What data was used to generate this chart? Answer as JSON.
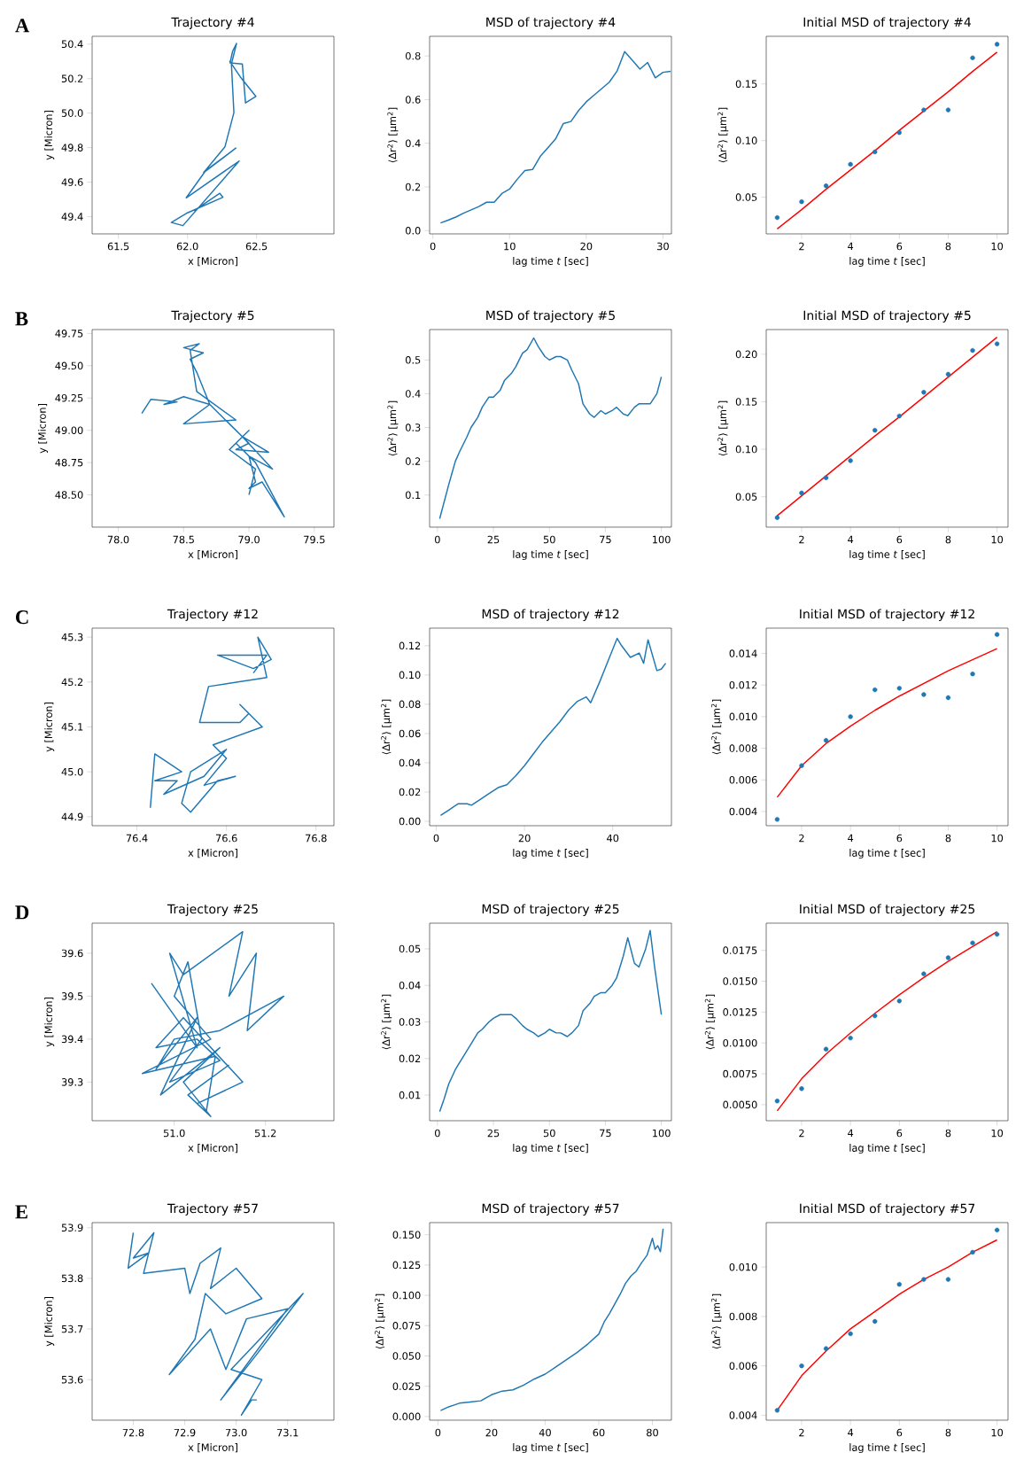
{
  "chart_data": [
    {
      "type": "line",
      "title": "Trajectory #4",
      "xlabel": "x [Micron]",
      "ylabel": "y [Micron]",
      "annotations": [
        "A"
      ],
      "xlim": [
        61.31,
        63.06
      ],
      "ylim": [
        49.3,
        50.445
      ],
      "xticks": [
        61.5,
        {
          "value": 62.0,
          "label": "62.0"
        },
        62.5
      ],
      "yticks": [
        49.4,
        49.6,
        49.8,
        {
          "value": 50.0,
          "label": "50.0"
        },
        50.2,
        50.4
      ],
      "series": [
        {
          "color": "#1f77b4",
          "x": [
            62.047,
            62.234,
            62.257,
            62.0,
            61.883,
            61.967,
            62.374,
            61.991,
            62.131,
            62.35,
            62.117,
            62.271,
            62.336,
            62.318,
            62.355,
            62.327,
            62.308,
            62.397,
            62.42,
            62.495,
            62.383,
            62.304
          ],
          "values": [
            49.434,
            49.535,
            49.512,
            49.422,
            49.366,
            49.348,
            49.722,
            49.509,
            49.666,
            49.797,
            49.655,
            49.804,
            50.003,
            50.284,
            50.404,
            50.359,
            50.291,
            50.284,
            50.059,
            50.097,
            50.209,
            50.303
          ]
        }
      ]
    },
    {
      "type": "line",
      "title": "MSD of trajectory #4",
      "xlabel": "lag time *t* [sec]",
      "ylabel": "⟨Δr$^{2}$⟩ [μm$^{2}$]",
      "xlim": [
        -0.42,
        31.1
      ],
      "ylim": [
        -0.015,
        0.89
      ],
      "xticks": [
        0,
        10,
        20,
        30
      ],
      "yticks": [
        {
          "value": 0,
          "label": "0.0"
        },
        0.2,
        0.4,
        0.6,
        0.8
      ],
      "series": [
        {
          "color": "#1f77b4",
          "x": [
            1,
            2,
            3,
            4,
            5,
            6,
            7,
            8,
            9,
            10,
            11,
            12,
            13,
            14,
            15,
            16,
            17,
            18,
            19,
            20,
            21,
            22,
            23,
            24,
            25,
            26,
            27,
            28,
            29,
            30,
            31
          ],
          "values": [
            0.035,
            0.048,
            0.062,
            0.08,
            0.095,
            0.11,
            0.13,
            0.13,
            0.17,
            0.19,
            0.235,
            0.275,
            0.28,
            0.34,
            0.38,
            0.42,
            0.49,
            0.5,
            0.55,
            0.59,
            0.62,
            0.65,
            0.68,
            0.73,
            0.82,
            0.78,
            0.74,
            0.77,
            0.7,
            0.725,
            0.73
          ]
        }
      ]
    },
    {
      "type": "scatter",
      "title": "Initial MSD of trajectory #4",
      "xlabel": "lag time *t* [sec]",
      "ylabel": "⟨Δr$^{2}$⟩ [μm$^{2}$]",
      "xlim": [
        0.55,
        10.45
      ],
      "ylim": [
        0.0176,
        0.192
      ],
      "xticks": [
        2,
        4,
        6,
        8,
        10
      ],
      "yticks": [
        0.05,
        {
          "value": 0.1,
          "label": "0.10"
        },
        0.15
      ],
      "x": [
        1,
        2,
        3,
        4,
        5,
        6,
        7,
        8,
        9,
        10
      ],
      "series": [
        {
          "type": "scatter",
          "color": "#1f77b4",
          "values": [
            0.032,
            0.046,
            0.06,
            0.079,
            0.09,
            0.107,
            0.127,
            0.127,
            0.173,
            0.185
          ]
        },
        {
          "type": "line",
          "color": "#ff0000",
          "values": [
            0.022,
            0.039,
            0.057,
            0.074,
            0.091,
            0.109,
            0.126,
            0.143,
            0.161,
            0.178
          ]
        }
      ]
    },
    {
      "type": "line",
      "title": "Trajectory #5",
      "xlabel": "x [Micron]",
      "ylabel": "y [Micron]",
      "annotations": [
        "B"
      ],
      "xlim": [
        77.8,
        79.65
      ],
      "ylim": [
        48.25,
        49.78
      ],
      "xticks": [
        {
          "value": 78.0,
          "label": "78.0"
        },
        78.5,
        {
          "value": 79.0,
          "label": "79.0"
        },
        79.5
      ],
      "yticks": [
        {
          "value": 48.5,
          "label": "48.50"
        },
        48.75,
        {
          "value": 49.0,
          "label": "49.00"
        },
        49.25,
        {
          "value": 49.5,
          "label": "49.50"
        },
        49.75
      ],
      "series": [
        {
          "color": "#1f77b4",
          "x": [
            78.18,
            78.25,
            78.45,
            78.35,
            78.5,
            78.7,
            78.5,
            78.9,
            78.6,
            78.55,
            78.62,
            78.5,
            78.65,
            78.55,
            78.6,
            78.7,
            78.85,
            79.0,
            78.9,
            79.15,
            78.95,
            79.18,
            79.0,
            79.05,
            79.0,
            79.1,
            79.27,
            79.05,
            78.9,
            79.0,
            78.85,
            79.05,
            79.0
          ],
          "values": [
            49.13,
            49.24,
            49.22,
            49.2,
            49.26,
            49.2,
            49.05,
            49.08,
            49.3,
            49.62,
            49.67,
            49.64,
            49.6,
            49.55,
            49.45,
            49.2,
            49.05,
            48.9,
            48.85,
            48.83,
            48.95,
            48.7,
            48.8,
            48.6,
            48.55,
            48.6,
            48.33,
            48.75,
            48.9,
            49.0,
            48.85,
            48.7,
            48.5
          ]
        }
      ]
    },
    {
      "type": "line",
      "title": "MSD of trajectory #5",
      "xlabel": "lag time *t* [sec]",
      "ylabel": "⟨Δr$^{2}$⟩ [μm$^{2}$]",
      "xlim": [
        -3.5,
        104.5
      ],
      "ylim": [
        0.005,
        0.59
      ],
      "xticks": [
        0,
        25,
        50,
        75,
        100
      ],
      "yticks": [
        0.1,
        0.2,
        0.3,
        0.4,
        0.5
      ],
      "series": [
        {
          "color": "#1f77b4",
          "x": [
            1,
            3,
            5,
            8,
            10,
            13,
            15,
            18,
            20,
            23,
            25,
            28,
            30,
            33,
            35,
            38,
            40,
            43,
            45,
            48,
            50,
            53,
            55,
            58,
            60,
            63,
            65,
            68,
            70,
            73,
            75,
            78,
            80,
            83,
            85,
            88,
            90,
            93,
            95,
            98,
            100
          ],
          "values": [
            0.03,
            0.08,
            0.13,
            0.2,
            0.23,
            0.27,
            0.3,
            0.33,
            0.36,
            0.39,
            0.39,
            0.41,
            0.44,
            0.46,
            0.48,
            0.52,
            0.53,
            0.565,
            0.54,
            0.51,
            0.5,
            0.51,
            0.51,
            0.5,
            0.47,
            0.43,
            0.37,
            0.34,
            0.33,
            0.35,
            0.34,
            0.35,
            0.36,
            0.34,
            0.335,
            0.36,
            0.37,
            0.37,
            0.37,
            0.4,
            0.45
          ]
        }
      ]
    },
    {
      "type": "scatter",
      "title": "Initial MSD of trajectory #5",
      "xlabel": "lag time *t* [sec]",
      "ylabel": "⟨Δr$^{2}$⟩ [μm$^{2}$]",
      "xlim": [
        0.55,
        10.45
      ],
      "ylim": [
        0.018,
        0.226
      ],
      "xticks": [
        2,
        4,
        6,
        8,
        10
      ],
      "yticks": [
        0.05,
        {
          "value": 0.1,
          "label": "0.10"
        },
        0.15,
        {
          "value": 0.2,
          "label": "0.20"
        }
      ],
      "x": [
        1,
        2,
        3,
        4,
        5,
        6,
        7,
        8,
        9,
        10
      ],
      "series": [
        {
          "type": "scatter",
          "color": "#1f77b4",
          "values": [
            0.028,
            0.054,
            0.07,
            0.088,
            0.12,
            0.135,
            0.16,
            0.179,
            0.204,
            0.211
          ]
        },
        {
          "type": "line",
          "color": "#ff0000",
          "values": [
            0.03,
            0.051,
            0.072,
            0.093,
            0.114,
            0.134,
            0.155,
            0.176,
            0.197,
            0.218
          ]
        }
      ]
    },
    {
      "type": "line",
      "title": "Trajectory #12",
      "xlabel": "x [Micron]",
      "ylabel": "y [Micron]",
      "annotations": [
        "C"
      ],
      "xlim": [
        76.3,
        76.84
      ],
      "ylim": [
        44.88,
        45.32
      ],
      "xticks": [
        76.4,
        76.6,
        76.8
      ],
      "yticks": [
        44.9,
        {
          "value": 45.0,
          "label": "45.0"
        },
        45.1,
        45.2,
        45.3
      ],
      "series": [
        {
          "color": "#1f77b4",
          "x": [
            76.43,
            76.44,
            76.5,
            76.44,
            76.49,
            76.46,
            76.55,
            76.6,
            76.52,
            76.5,
            76.52,
            76.58,
            76.62,
            76.55,
            76.6,
            76.57,
            76.68,
            76.63,
            76.65,
            76.63,
            76.54,
            76.56,
            76.69,
            76.67,
            76.7,
            76.66,
            76.58,
            76.69,
            76.66
          ],
          "values": [
            44.92,
            45.04,
            45.0,
            44.98,
            44.98,
            44.95,
            44.99,
            45.05,
            45.0,
            44.93,
            44.91,
            44.98,
            44.99,
            44.97,
            45.03,
            45.06,
            45.1,
            45.15,
            45.13,
            45.11,
            45.11,
            45.19,
            45.21,
            45.3,
            45.25,
            45.23,
            45.26,
            45.26,
            45.22
          ]
        }
      ]
    },
    {
      "type": "line",
      "title": "MSD of trajectory #12",
      "xlabel": "lag time *t* [sec]",
      "ylabel": "⟨Δr$^{2}$⟩ [μm$^{2}$]",
      "xlim": [
        -1.5,
        53.3
      ],
      "ylim": [
        -0.003,
        0.132
      ],
      "xticks": [
        0,
        20,
        40
      ],
      "yticks": [
        {
          "value": 0,
          "label": "0.00"
        },
        0.02,
        0.04,
        0.06,
        0.08,
        {
          "value": 0.1,
          "label": "0.10"
        },
        0.12
      ],
      "series": [
        {
          "color": "#1f77b4",
          "x": [
            1,
            3,
            5,
            7,
            8,
            10,
            12,
            14,
            16,
            18,
            20,
            22,
            24,
            26,
            28,
            30,
            32,
            34,
            35,
            37,
            39,
            41,
            42,
            44,
            46,
            47,
            48,
            50,
            51,
            52
          ],
          "values": [
            0.004,
            0.008,
            0.012,
            0.012,
            0.011,
            0.015,
            0.019,
            0.023,
            0.025,
            0.031,
            0.038,
            0.046,
            0.054,
            0.061,
            0.068,
            0.076,
            0.082,
            0.085,
            0.081,
            0.095,
            0.11,
            0.125,
            0.12,
            0.112,
            0.115,
            0.108,
            0.124,
            0.103,
            0.104,
            0.108
          ]
        }
      ]
    },
    {
      "type": "scatter",
      "title": "Initial MSD of trajectory #12",
      "xlabel": "lag time *t* [sec]",
      "ylabel": "⟨Δr$^{2}$⟩ [μm$^{2}$]",
      "xlim": [
        0.55,
        10.45
      ],
      "ylim": [
        0.0031,
        0.0156
      ],
      "xticks": [
        2,
        4,
        6,
        8,
        10
      ],
      "yticks": [
        0.004,
        0.006,
        0.008,
        {
          "value": 0.01,
          "label": "0.010"
        },
        0.012,
        0.014
      ],
      "x": [
        1,
        2,
        3,
        4,
        5,
        6,
        7,
        8,
        9,
        10
      ],
      "series": [
        {
          "type": "scatter",
          "color": "#1f77b4",
          "values": [
            0.0035,
            0.0069,
            0.0085,
            0.01,
            0.0117,
            0.0118,
            0.0114,
            0.0112,
            0.0127,
            0.0152
          ]
        },
        {
          "type": "line",
          "color": "#ff0000",
          "values": [
            0.0049,
            0.0069,
            0.0083,
            0.0094,
            0.0104,
            0.0113,
            0.0121,
            0.0129,
            0.0136,
            0.0143
          ]
        }
      ]
    },
    {
      "type": "line",
      "title": "Trajectory #25",
      "xlabel": "x [Micron]",
      "ylabel": "y [Micron]",
      "annotations": [
        "D"
      ],
      "xlim": [
        50.82,
        51.35
      ],
      "ylim": [
        39.21,
        39.67
      ],
      "xticks": [
        {
          "value": 51.0,
          "label": "51.0"
        },
        51.2
      ],
      "yticks": [
        39.3,
        39.4,
        39.5,
        39.6
      ],
      "series": [
        {
          "color": "#1f77b4",
          "x": [
            50.95,
            51.05,
            50.99,
            51.02,
            51.15,
            51.12,
            51.18,
            51.16,
            51.24,
            51.1,
            51.0,
            50.96,
            51.05,
            50.97,
            51.1,
            51.02,
            51.08,
            51.05,
            51.15,
            51.02,
            50.96,
            51.05,
            51.1,
            50.99,
            51.06,
            51.03,
            51.0,
            51.08,
            50.93,
            51.09,
            51.07,
            51.03,
            51.12
          ],
          "values": [
            39.53,
            39.38,
            39.6,
            39.55,
            39.65,
            39.5,
            39.6,
            39.42,
            39.5,
            39.42,
            39.4,
            39.33,
            39.45,
            39.27,
            39.38,
            39.3,
            39.22,
            39.25,
            39.3,
            39.45,
            39.38,
            39.4,
            39.35,
            39.3,
            39.4,
            39.58,
            39.5,
            39.4,
            39.32,
            39.36,
            39.23,
            39.27,
            39.34
          ]
        }
      ]
    },
    {
      "type": "line",
      "title": "MSD of trajectory #25",
      "xlabel": "lag time *t* [sec]",
      "ylabel": "⟨Δr$^{2}$⟩ [μm$^{2}$]",
      "xlim": [
        -3.5,
        104.5
      ],
      "ylim": [
        0.003,
        0.057
      ],
      "xticks": [
        0,
        25,
        50,
        75,
        100
      ],
      "yticks": [
        0.01,
        0.02,
        0.03,
        0.04,
        0.05
      ],
      "series": [
        {
          "color": "#1f77b4",
          "x": [
            1,
            3,
            5,
            8,
            10,
            13,
            15,
            18,
            20,
            23,
            25,
            28,
            30,
            33,
            35,
            38,
            40,
            43,
            45,
            48,
            50,
            53,
            55,
            58,
            60,
            63,
            65,
            68,
            70,
            73,
            75,
            78,
            80,
            83,
            85,
            88,
            90,
            93,
            95,
            97,
            100
          ],
          "values": [
            0.0055,
            0.009,
            0.013,
            0.017,
            0.019,
            0.022,
            0.024,
            0.027,
            0.028,
            0.03,
            0.031,
            0.032,
            0.032,
            0.032,
            0.031,
            0.029,
            0.028,
            0.027,
            0.026,
            0.027,
            0.028,
            0.027,
            0.027,
            0.026,
            0.027,
            0.029,
            0.033,
            0.035,
            0.037,
            0.038,
            0.038,
            0.04,
            0.042,
            0.048,
            0.053,
            0.046,
            0.045,
            0.05,
            0.055,
            0.045,
            0.032
          ]
        }
      ]
    },
    {
      "type": "scatter",
      "title": "Initial MSD of trajectory #25",
      "xlabel": "lag time *t* [sec]",
      "ylabel": "⟨Δr$^{2}$⟩ [μm$^{2}$]",
      "xlim": [
        0.55,
        10.45
      ],
      "ylim": [
        0.0037,
        0.0197
      ],
      "xticks": [
        2,
        4,
        6,
        8,
        10
      ],
      "yticks": [
        {
          "value": 0.005,
          "label": "0.0050"
        },
        0.0075,
        {
          "value": 0.01,
          "label": "0.0100"
        },
        0.0125,
        {
          "value": 0.015,
          "label": "0.0150"
        },
        0.0175
      ],
      "x": [
        1,
        2,
        3,
        4,
        5,
        6,
        7,
        8,
        9,
        10
      ],
      "series": [
        {
          "type": "scatter",
          "color": "#1f77b4",
          "values": [
            0.0053,
            0.0063,
            0.0095,
            0.0104,
            0.0122,
            0.0134,
            0.0156,
            0.0169,
            0.0181,
            0.0188
          ]
        },
        {
          "type": "line",
          "color": "#ff0000",
          "values": [
            0.0045,
            0.0071,
            0.0091,
            0.0108,
            0.0124,
            0.0139,
            0.0153,
            0.0166,
            0.0178,
            0.019
          ]
        }
      ]
    },
    {
      "type": "line",
      "title": "Trajectory #57",
      "xlabel": "x [Micron]",
      "ylabel": "y [Micron]",
      "annotations": [
        "E"
      ],
      "xlim": [
        72.72,
        73.19
      ],
      "ylim": [
        53.52,
        53.91
      ],
      "xticks": [
        72.8,
        72.9,
        {
          "value": 73.0,
          "label": "73.0"
        },
        73.1
      ],
      "yticks": [
        53.6,
        53.7,
        53.8,
        53.9
      ],
      "series": [
        {
          "color": "#1f77b4",
          "x": [
            72.8,
            72.79,
            72.83,
            72.8,
            72.84,
            72.82,
            72.9,
            72.91,
            72.93,
            72.97,
            72.95,
            73.0,
            73.05,
            72.98,
            72.94,
            72.92,
            72.87,
            72.95,
            72.98,
            73.02,
            73.1,
            72.97,
            73.04,
            73.13,
            72.99,
            73.05,
            73.01,
            73.03,
            73.04
          ],
          "values": [
            53.89,
            53.82,
            53.85,
            53.84,
            53.89,
            53.81,
            53.82,
            53.77,
            53.83,
            53.86,
            53.78,
            53.82,
            53.76,
            53.73,
            53.77,
            53.68,
            53.61,
            53.7,
            53.62,
            53.72,
            53.74,
            53.56,
            53.65,
            53.77,
            53.62,
            53.6,
            53.53,
            53.56,
            53.56
          ]
        }
      ]
    },
    {
      "type": "line",
      "title": "MSD of trajectory #57",
      "xlabel": "lag time *t* [sec]",
      "ylabel": "⟨Δr$^{2}$⟩ [μm$^{2}$]",
      "xlim": [
        -3.1,
        87.1
      ],
      "ylim": [
        -0.003,
        0.16
      ],
      "xticks": [
        0,
        20,
        40,
        60,
        80
      ],
      "yticks": [
        {
          "value": 0,
          "label": "0.000"
        },
        0.025,
        {
          "value": 0.05,
          "label": "0.050"
        },
        0.075,
        {
          "value": 0.1,
          "label": "0.100"
        },
        0.125,
        {
          "value": 0.15,
          "label": "0.150"
        }
      ],
      "series": [
        {
          "color": "#1f77b4",
          "x": [
            1,
            4,
            8,
            12,
            16,
            20,
            24,
            28,
            32,
            36,
            40,
            44,
            48,
            52,
            56,
            60,
            62,
            64,
            66,
            68,
            70,
            72,
            74,
            76,
            78,
            80,
            81,
            82,
            83,
            84
          ],
          "values": [
            0.005,
            0.008,
            0.011,
            0.012,
            0.013,
            0.018,
            0.021,
            0.022,
            0.026,
            0.031,
            0.035,
            0.041,
            0.047,
            0.053,
            0.06,
            0.068,
            0.078,
            0.085,
            0.093,
            0.101,
            0.11,
            0.116,
            0.12,
            0.127,
            0.133,
            0.147,
            0.138,
            0.141,
            0.136,
            0.155
          ]
        }
      ]
    },
    {
      "type": "scatter",
      "title": "Initial MSD of trajectory #57",
      "xlabel": "lag time *t* [sec]",
      "ylabel": "⟨Δr$^{2}$⟩ [μm$^{2}$]",
      "xlim": [
        0.55,
        10.45
      ],
      "ylim": [
        0.0038,
        0.0118
      ],
      "xticks": [
        2,
        4,
        6,
        8,
        10
      ],
      "yticks": [
        0.004,
        0.006,
        0.008,
        {
          "value": 0.01,
          "label": "0.010"
        }
      ],
      "x": [
        1,
        2,
        3,
        4,
        5,
        6,
        7,
        8,
        9,
        10
      ],
      "series": [
        {
          "type": "scatter",
          "color": "#1f77b4",
          "values": [
            0.0042,
            0.006,
            0.0067,
            0.0073,
            0.0078,
            0.0093,
            0.0095,
            0.0095,
            0.0106,
            0.0115
          ]
        },
        {
          "type": "line",
          "color": "#ff0000",
          "values": [
            0.0042,
            0.0056,
            0.0066,
            0.0075,
            0.0082,
            0.0089,
            0.0095,
            0.01,
            0.0106,
            0.0111
          ]
        }
      ]
    }
  ]
}
